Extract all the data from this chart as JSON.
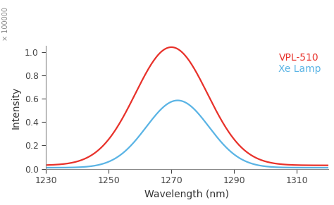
{
  "title": "",
  "xlabel": "Wavelength (nm)",
  "ylabel": "Intensity",
  "xlim": [
    1230,
    1320
  ],
  "ylim": [
    0.0,
    1.05
  ],
  "x_ticks": [
    1230,
    1250,
    1270,
    1290,
    1310
  ],
  "y_ticks": [
    0.0,
    0.2,
    0.4,
    0.6,
    0.8,
    1.0
  ],
  "red_peak": 1270,
  "red_amplitude": 1.01,
  "red_sigma": 11.5,
  "red_baseline": 0.03,
  "blue_peak": 1272,
  "blue_amplitude": 0.575,
  "blue_sigma": 10.0,
  "blue_baseline": 0.01,
  "red_color": "#e8312a",
  "blue_color": "#5ab4e5",
  "legend_vpl": "VPL-510",
  "legend_xe": "Xe Lamp",
  "background_color": "#ffffff",
  "linewidth": 1.6,
  "scale_label": "× 100000",
  "scale_fontsize": 7,
  "axis_label_fontsize": 10,
  "tick_label_fontsize": 9,
  "legend_fontsize": 10,
  "spine_color": "#888888",
  "tick_color": "#444444"
}
